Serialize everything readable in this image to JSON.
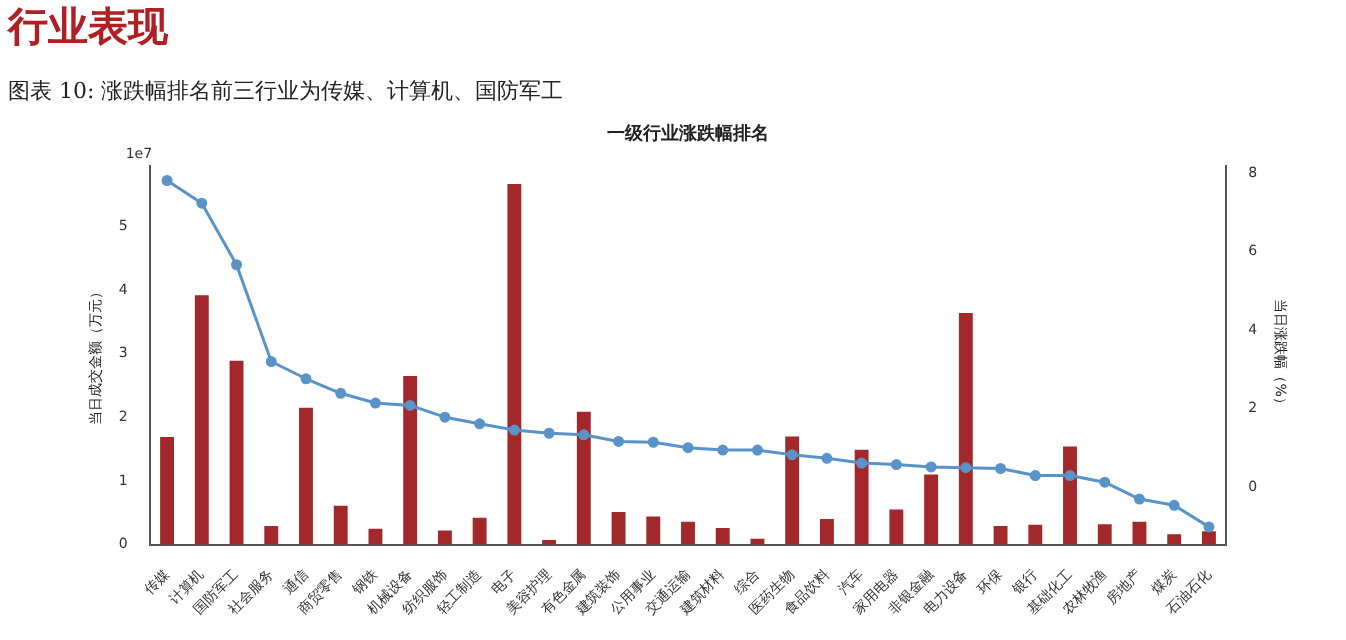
{
  "chart_data": {
    "type": "bar",
    "title": "一级行业涨跌幅排名",
    "annotations": [
      "行业表现",
      "图表 10:  涨跌幅排名前三行业为传媒、计算机、国防军工",
      "1e7"
    ],
    "ylabel": "当日成交金额（万元）",
    "y2label": "当日涨跌幅（%）",
    "categories": [
      "传媒",
      "计算机",
      "国防军工",
      "社会服务",
      "通信",
      "商贸零售",
      "钢铁",
      "机械设备",
      "纺织服饰",
      "轻工制造",
      "电子",
      "美容护理",
      "有色金属",
      "建筑装饰",
      "公用事业",
      "交通运输",
      "建筑材料",
      "综合",
      "医药生物",
      "食品饮料",
      "汽车",
      "家用电器",
      "非银金融",
      "电力设备",
      "环保",
      "银行",
      "基础化工",
      "农林牧渔",
      "房地产",
      "煤炭",
      "石油石化"
    ],
    "series": [
      {
        "color": "#a3282c",
        "values": [
          1.69,
          3.92,
          2.89,
          0.29,
          2.15,
          0.61,
          0.25,
          2.65,
          0.22,
          0.42,
          5.67,
          0.07,
          2.09,
          0.51,
          0.44,
          0.36,
          0.26,
          0.09,
          1.7,
          0.4,
          1.49,
          0.55,
          1.1,
          3.64,
          0.29,
          0.31,
          1.54,
          0.32,
          0.36,
          0.16,
          0.21
        ]
      },
      {
        "type": "line",
        "axis": "y2",
        "color": "#5a93c8",
        "values": [
          7.82,
          7.24,
          5.67,
          3.2,
          2.76,
          2.39,
          2.14,
          2.08,
          1.78,
          1.61,
          1.45,
          1.37,
          1.33,
          1.16,
          1.14,
          1.0,
          0.94,
          0.94,
          0.82,
          0.73,
          0.61,
          0.57,
          0.51,
          0.49,
          0.47,
          0.29,
          0.29,
          0.12,
          -0.31,
          -0.47,
          -1.02
        ]
      }
    ],
    "ylim": [
      0,
      5.96
    ],
    "yticks": [
      0,
      1,
      2,
      3,
      4,
      5
    ],
    "y2lim": [
      -1.47,
      8.2
    ],
    "y2ticks": [
      0,
      2,
      4,
      6,
      8
    ],
    "marker": "circle",
    "grid": false,
    "legend": false
  }
}
